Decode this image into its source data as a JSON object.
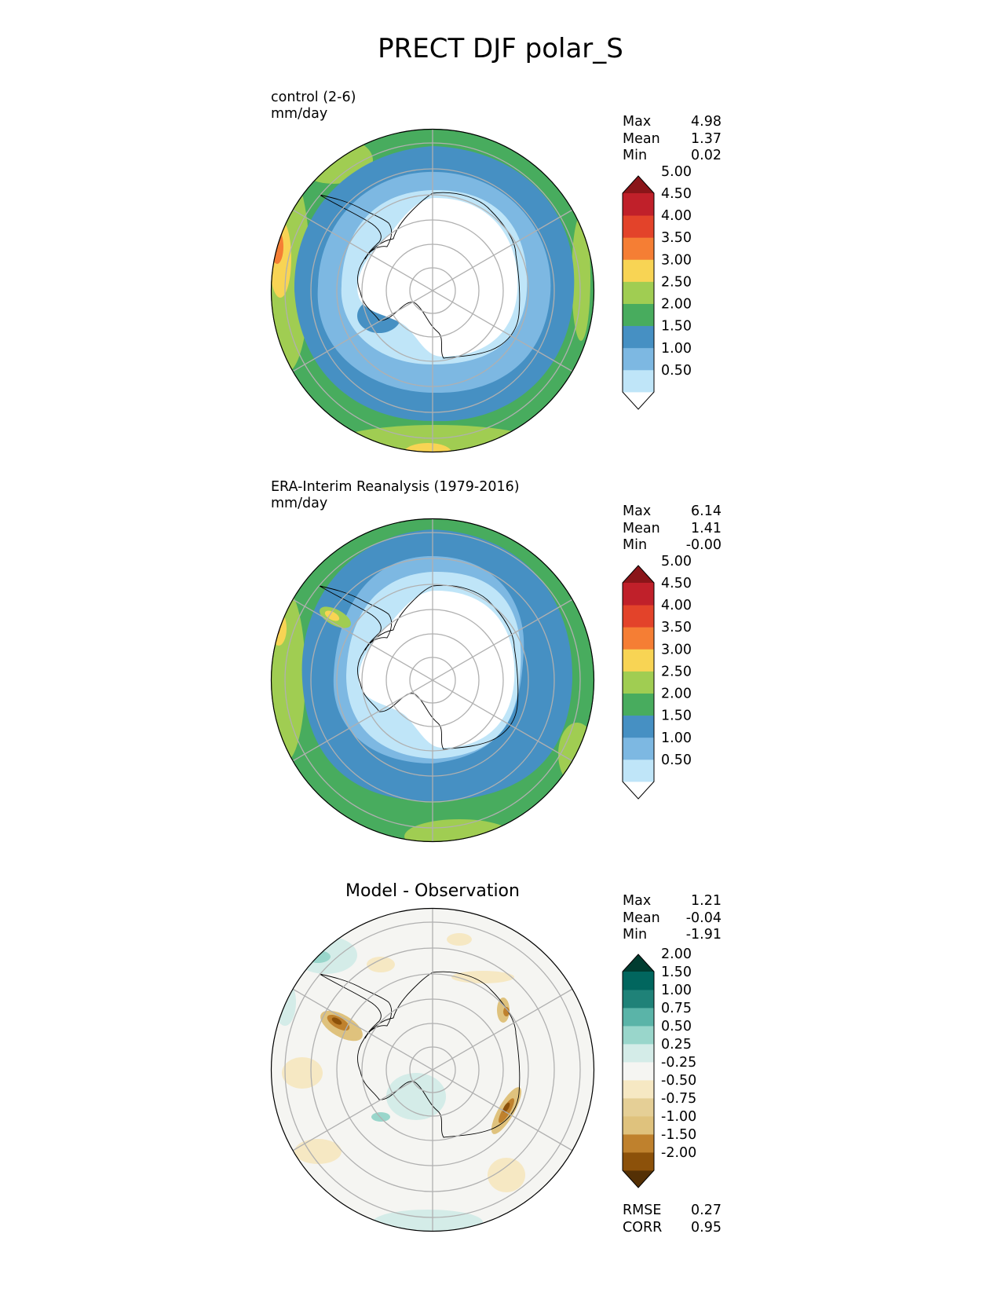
{
  "title": "PRECT DJF polar_S",
  "colors": {
    "precip": [
      "#ffffff",
      "#bfe5f8",
      "#7db8e2",
      "#4690c3",
      "#48ac5e",
      "#a0cd52",
      "#f8d454",
      "#f57e34",
      "#e3432a",
      "#c0202a",
      "#8a1519"
    ],
    "diff": [
      "#543005",
      "#8c510a",
      "#bf812d",
      "#dfc27d",
      "#e5cf96",
      "#f6e8c3",
      "#f5f5f2",
      "#d4ece8",
      "#99d6cb",
      "#5ab4a8",
      "#1f8278",
      "#01665e",
      "#003c30"
    ]
  },
  "panels": [
    {
      "id": "test",
      "label_line1": "control (2-6)",
      "label_line2": "mm/day",
      "stats": [
        {
          "name": "Max",
          "value": "4.98"
        },
        {
          "name": "Mean",
          "value": "1.37"
        },
        {
          "name": "Min",
          "value": "0.02"
        }
      ],
      "colorbar": {
        "colorset": "precip",
        "ticks": [
          "0.50",
          "1.00",
          "1.50",
          "2.00",
          "2.50",
          "3.00",
          "3.50",
          "4.00",
          "4.50",
          "5.00"
        ]
      }
    },
    {
      "id": "reference",
      "label_line1": "ERA-Interim Reanalysis (1979-2016)",
      "label_line2": "mm/day",
      "stats": [
        {
          "name": "Max",
          "value": "6.14"
        },
        {
          "name": "Mean",
          "value": "1.41"
        },
        {
          "name": "Min",
          "value": "-0.00"
        }
      ],
      "colorbar": {
        "colorset": "precip",
        "ticks": [
          "0.50",
          "1.00",
          "1.50",
          "2.00",
          "2.50",
          "3.00",
          "3.50",
          "4.00",
          "4.50",
          "5.00"
        ]
      }
    },
    {
      "id": "difference",
      "title": "Model - Observation",
      "stats": [
        {
          "name": "Max",
          "value": "1.21"
        },
        {
          "name": "Mean",
          "value": "-0.04"
        },
        {
          "name": "Min",
          "value": "-1.91"
        }
      ],
      "colorbar": {
        "colorset": "diff",
        "ticks": [
          "-2.00",
          "-1.50",
          "-1.00",
          "-0.75",
          "-0.50",
          "-0.25",
          "0.25",
          "0.50",
          "0.75",
          "1.00",
          "1.50",
          "2.00"
        ]
      },
      "metrics": [
        {
          "name": "RMSE",
          "value": "0.27"
        },
        {
          "name": "CORR",
          "value": "0.95"
        }
      ]
    }
  ],
  "chart_data": [
    {
      "type": "heatmap",
      "title": "control (2-6)",
      "units": "mm/day",
      "projection": "south polar stereographic",
      "levels": [
        0.5,
        1.0,
        1.5,
        2.0,
        2.5,
        3.0,
        3.5,
        4.0,
        4.5,
        5.0
      ],
      "extend": "both",
      "stats": {
        "max": 4.98,
        "mean": 1.37,
        "min": 0.02
      }
    },
    {
      "type": "heatmap",
      "title": "ERA-Interim Reanalysis (1979-2016)",
      "units": "mm/day",
      "projection": "south polar stereographic",
      "levels": [
        0.5,
        1.0,
        1.5,
        2.0,
        2.5,
        3.0,
        3.5,
        4.0,
        4.5,
        5.0
      ],
      "extend": "both",
      "stats": {
        "max": 6.14,
        "mean": 1.41,
        "min": -0.0
      }
    },
    {
      "type": "heatmap",
      "title": "Model - Observation",
      "projection": "south polar stereographic",
      "levels": [
        -2.0,
        -1.5,
        -1.0,
        -0.75,
        -0.5,
        -0.25,
        0.25,
        0.5,
        0.75,
        1.0,
        1.5,
        2.0
      ],
      "extend": "both",
      "stats": {
        "max": 1.21,
        "mean": -0.04,
        "min": -1.91
      },
      "metrics": {
        "rmse": 0.27,
        "corr": 0.95
      }
    }
  ]
}
